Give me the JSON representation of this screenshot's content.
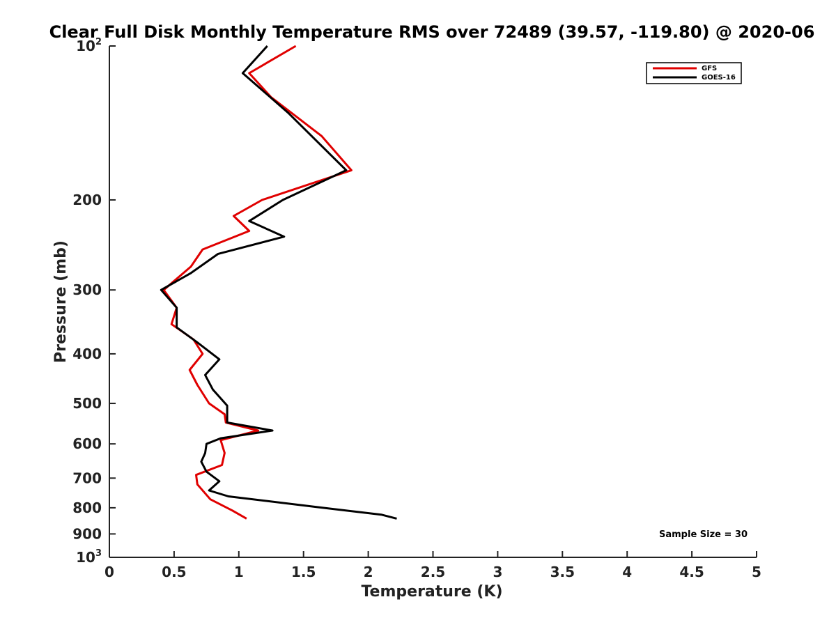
{
  "chart_data": {
    "type": "line",
    "title": "Clear Full Disk Monthly Temperature RMS over 72489 (39.57, -119.80) @ 2020-06",
    "xlabel": "Temperature (K)",
    "ylabel": "Pressure (mb)",
    "xlim": [
      0,
      5
    ],
    "ylim": [
      100,
      1000
    ],
    "yscale": "log",
    "yreversed": true,
    "x_ticks": [
      {
        "value": 0,
        "label": "0"
      },
      {
        "value": 0.5,
        "label": "0.5"
      },
      {
        "value": 1,
        "label": "1"
      },
      {
        "value": 1.5,
        "label": "1.5"
      },
      {
        "value": 2,
        "label": "2"
      },
      {
        "value": 2.5,
        "label": "2.5"
      },
      {
        "value": 3,
        "label": "3"
      },
      {
        "value": 3.5,
        "label": "3.5"
      },
      {
        "value": 4,
        "label": "4"
      },
      {
        "value": 4.5,
        "label": "4.5"
      },
      {
        "value": 5,
        "label": "5"
      }
    ],
    "y_ticks": [
      {
        "value": 100,
        "label": "10",
        "exp": "2"
      },
      {
        "value": 200,
        "label": "200"
      },
      {
        "value": 300,
        "label": "300"
      },
      {
        "value": 400,
        "label": "400"
      },
      {
        "value": 500,
        "label": "500"
      },
      {
        "value": 600,
        "label": "600"
      },
      {
        "value": 700,
        "label": "700"
      },
      {
        "value": 800,
        "label": "800"
      },
      {
        "value": 900,
        "label": "900"
      },
      {
        "value": 1000,
        "label": "10",
        "exp": "3"
      }
    ],
    "legend_position": "top-right",
    "series": [
      {
        "name": "GFS",
        "color": "#e00000",
        "points": [
          [
            1.44,
            100
          ],
          [
            1.08,
            113
          ],
          [
            1.25,
            126
          ],
          [
            1.64,
            150
          ],
          [
            1.87,
            175
          ],
          [
            1.18,
            200
          ],
          [
            0.96,
            215
          ],
          [
            1.08,
            230
          ],
          [
            0.72,
            250
          ],
          [
            0.63,
            270
          ],
          [
            0.42,
            300
          ],
          [
            0.52,
            325
          ],
          [
            0.48,
            350
          ],
          [
            0.65,
            375
          ],
          [
            0.72,
            400
          ],
          [
            0.62,
            430
          ],
          [
            0.68,
            460
          ],
          [
            0.77,
            500
          ],
          [
            0.89,
            525
          ],
          [
            0.9,
            545
          ],
          [
            1.15,
            565
          ],
          [
            0.86,
            590
          ],
          [
            0.89,
            625
          ],
          [
            0.87,
            660
          ],
          [
            0.67,
            690
          ],
          [
            0.68,
            720
          ],
          [
            0.78,
            770
          ],
          [
            0.95,
            810
          ],
          [
            1.06,
            840
          ]
        ]
      },
      {
        "name": "GOES-16",
        "color": "#000000",
        "points": [
          [
            1.22,
            100
          ],
          [
            1.03,
            113
          ],
          [
            1.38,
            135
          ],
          [
            1.83,
            175
          ],
          [
            1.34,
            200
          ],
          [
            1.08,
            220
          ],
          [
            1.35,
            236
          ],
          [
            0.84,
            255
          ],
          [
            0.63,
            278
          ],
          [
            0.4,
            300
          ],
          [
            0.52,
            325
          ],
          [
            0.52,
            355
          ],
          [
            0.68,
            380
          ],
          [
            0.85,
            410
          ],
          [
            0.74,
            440
          ],
          [
            0.8,
            470
          ],
          [
            0.91,
            505
          ],
          [
            0.91,
            545
          ],
          [
            1.26,
            565
          ],
          [
            0.86,
            585
          ],
          [
            0.75,
            600
          ],
          [
            0.74,
            625
          ],
          [
            0.71,
            650
          ],
          [
            0.75,
            680
          ],
          [
            0.85,
            710
          ],
          [
            0.77,
            740
          ],
          [
            0.92,
            760
          ],
          [
            1.65,
            800
          ],
          [
            2.1,
            825
          ],
          [
            2.22,
            840
          ]
        ]
      }
    ],
    "annotation": "Sample Size = 30"
  }
}
